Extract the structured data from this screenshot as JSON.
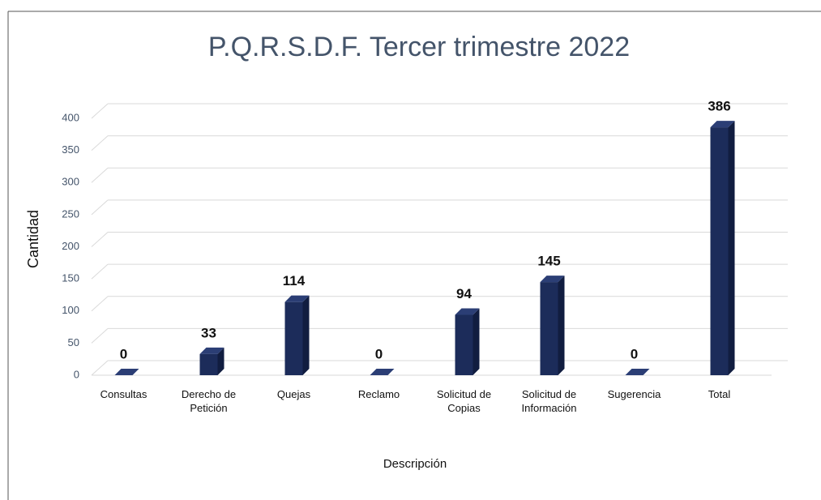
{
  "chart_data": {
    "type": "bar3d",
    "title": "P.Q.R.S.D.F. Tercer trimestre 2022",
    "xlabel": "Descripción",
    "ylabel": "Cantidad",
    "categories": [
      "Consultas",
      "Derecho de Petición",
      "Quejas",
      "Reclamo",
      "Solicitud de Copias",
      "Solicitud de Información",
      "Sugerencia",
      "Total"
    ],
    "values": [
      0,
      33,
      114,
      0,
      94,
      145,
      0,
      386
    ],
    "color": "#1c2c5a",
    "ylim": [
      0,
      400
    ],
    "yticks": [
      0,
      50,
      100,
      150,
      200,
      250,
      300,
      350,
      400
    ],
    "grid": true
  }
}
